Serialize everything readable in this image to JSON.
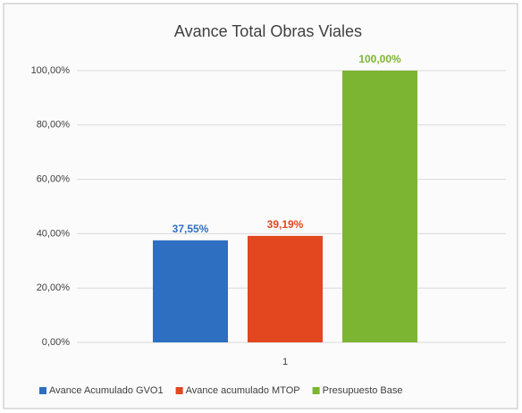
{
  "chart_data": {
    "type": "bar",
    "title": "Avance Total Obras Viales",
    "categories": [
      "1"
    ],
    "series": [
      {
        "name": "Avance Acumulado GVO1",
        "color": "#2f6fc2",
        "values": [
          37.55
        ],
        "value_labels": [
          "37,55%"
        ]
      },
      {
        "name": "Avance acumulado MTOP",
        "color": "#e2471f",
        "values": [
          39.19
        ],
        "value_labels": [
          "39,19%"
        ]
      },
      {
        "name": "Presupuesto Base",
        "color": "#7cb532",
        "values": [
          100
        ],
        "value_labels": [
          "100,00%"
        ]
      }
    ],
    "ylim": [
      0,
      100
    ],
    "yticks": [
      {
        "value": 0,
        "label": "0,00%"
      },
      {
        "value": 20,
        "label": "20,00%"
      },
      {
        "value": 40,
        "label": "40,00%"
      },
      {
        "value": 60,
        "label": "60,00%"
      },
      {
        "value": 80,
        "label": "80,00%"
      },
      {
        "value": 100,
        "label": "100,00%"
      }
    ],
    "grid": true,
    "legend": "bottom"
  }
}
